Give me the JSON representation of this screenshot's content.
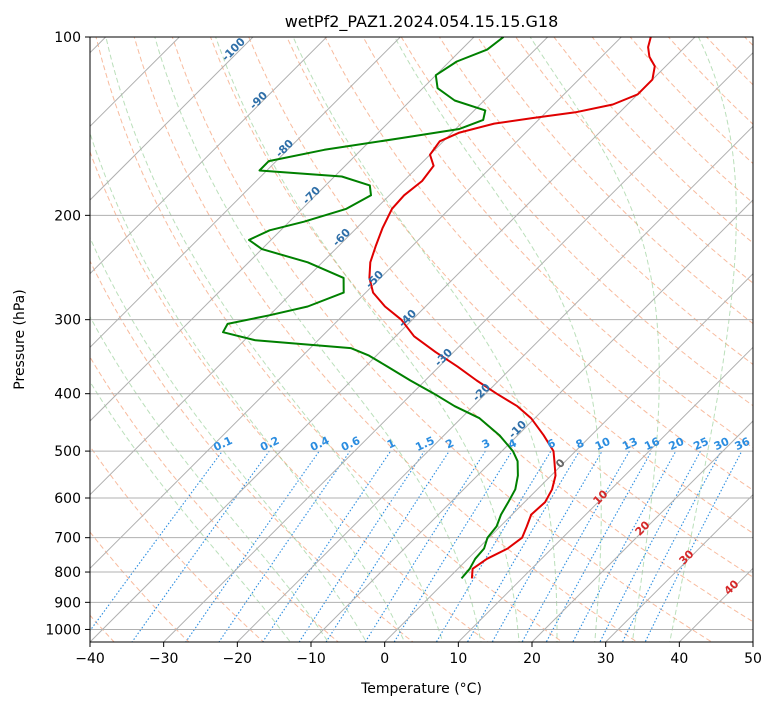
{
  "chart_data": {
    "type": "line",
    "title": "wetPf2_PAZ1.2024.054.15.15.G18",
    "xlabel": "Temperature (°C)",
    "ylabel": "Pressure (hPa)",
    "xlim": [
      -40,
      50
    ],
    "ylim": [
      1050,
      100
    ],
    "y_scale": "log",
    "skew": "skew-T log-P",
    "grid": true,
    "x_ticks": [
      "−40",
      "−30",
      "−20",
      "−10",
      "0",
      "10",
      "20",
      "30",
      "40",
      "50"
    ],
    "x_tick_values": [
      -40,
      -30,
      -20,
      -10,
      0,
      10,
      20,
      30,
      40,
      50
    ],
    "y_ticks": [
      "100",
      "200",
      "300",
      "400",
      "500",
      "600",
      "700",
      "800",
      "900",
      "1000"
    ],
    "y_tick_values": [
      100,
      200,
      300,
      400,
      500,
      600,
      700,
      800,
      900,
      1000
    ],
    "series": [
      {
        "color": "#e00000",
        "pressure": [
          820,
          790,
          760,
          730,
          700,
          670,
          640,
          610,
          580,
          550,
          520,
          500,
          470,
          440,
          420,
          400,
          380,
          360,
          340,
          320,
          300,
          285,
          270,
          255,
          240,
          225,
          210,
          195,
          185,
          175,
          165,
          158,
          150,
          145,
          140,
          137,
          134,
          130,
          125,
          118,
          112,
          108,
          104,
          100
        ],
        "temperature": [
          3.2,
          2.0,
          2.6,
          4.0,
          4.5,
          3.6,
          2.6,
          2.8,
          2.0,
          0.6,
          -1.5,
          -3.0,
          -6.5,
          -10.5,
          -14.0,
          -18.5,
          -23.0,
          -27.5,
          -32.5,
          -37.5,
          -41.5,
          -45.5,
          -49.0,
          -51.5,
          -53.5,
          -55.0,
          -56.5,
          -57.8,
          -58.0,
          -57.5,
          -58.0,
          -60.0,
          -60.5,
          -59.0,
          -55.5,
          -51.0,
          -46.0,
          -42.0,
          -40.0,
          -40.0,
          -41.5,
          -43.5,
          -45.0,
          -46.0
        ]
      },
      {
        "color": "#008000",
        "pressure": [
          820,
          790,
          760,
          730,
          700,
          670,
          640,
          610,
          580,
          550,
          520,
          500,
          470,
          440,
          420,
          400,
          380,
          360,
          345,
          335,
          325,
          315,
          305,
          295,
          285,
          270,
          255,
          240,
          228,
          220,
          212,
          205,
          195,
          185,
          178,
          172,
          168,
          162,
          155,
          148,
          143,
          138,
          133,
          128,
          122,
          116,
          110,
          105,
          100
        ],
        "temperature": [
          1.8,
          1.6,
          1.0,
          0.8,
          -0.2,
          -0.5,
          -1.5,
          -2.2,
          -3.0,
          -4.5,
          -6.5,
          -8.5,
          -12.5,
          -17.5,
          -22.5,
          -27.0,
          -32.0,
          -37.0,
          -41.0,
          -44.5,
          -58.5,
          -64.0,
          -64.5,
          -60.0,
          -56.0,
          -53.0,
          -55.0,
          -62.0,
          -70.0,
          -73.0,
          -71.5,
          -68.0,
          -64.0,
          -62.5,
          -64.0,
          -69.0,
          -81.0,
          -81.0,
          -75.0,
          -66.0,
          -59.5,
          -57.5,
          -58.5,
          -64.0,
          -68.0,
          -70.0,
          -69.0,
          -66.5,
          -66.0
        ]
      }
    ],
    "adiabat_labels": [
      "-100",
      "-90",
      "-80",
      "-70",
      "-60",
      "-50",
      "-40",
      "-30",
      "-20",
      "-10"
    ],
    "mixing_ratio_labels": [
      "0.1",
      "0.2",
      "0.4",
      "0.6",
      "1",
      "1.5",
      "2",
      "3",
      "4",
      "6",
      "8",
      "10",
      "13",
      "16",
      "20",
      "25",
      "30",
      "36"
    ],
    "isotherm_labels": [
      "0",
      "10",
      "20",
      "30",
      "40"
    ]
  }
}
